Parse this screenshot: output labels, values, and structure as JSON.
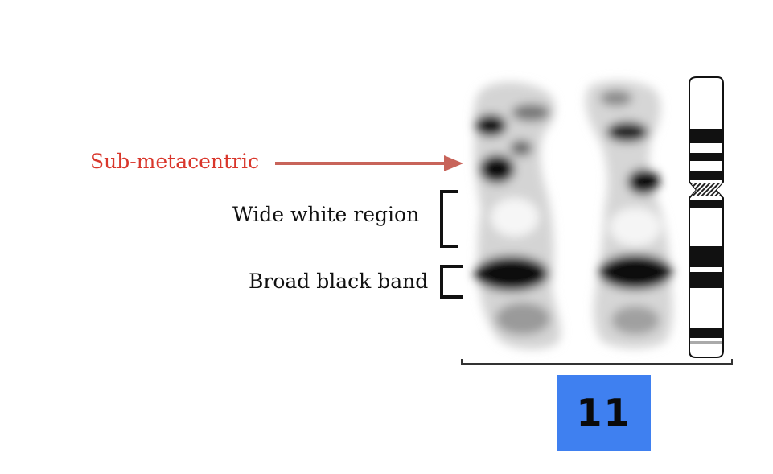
{
  "annotations": {
    "submetacentric": "Sub-metacentric",
    "wide_white_region": "Wide white region",
    "broad_black_band": "Broad black band"
  },
  "chromosome_number": "11",
  "colors": {
    "annotation_red": "#d9362b",
    "arrow": "#c8645a",
    "label_box": "#3f80f0",
    "text": "#111111"
  }
}
